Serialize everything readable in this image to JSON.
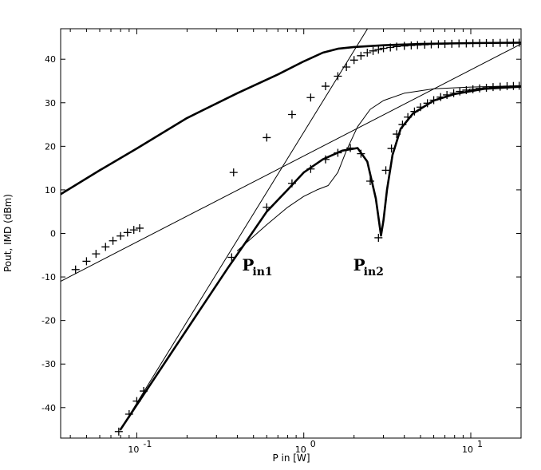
{
  "chart_data": {
    "type": "line",
    "title": "",
    "xlabel": "P in [W]",
    "ylabel": "Pout, IMD (dBm)",
    "xscale": "log",
    "xlim": [
      0.035,
      20
    ],
    "ylim": [
      -47,
      47
    ],
    "x_ticks": [
      {
        "value": 0.1,
        "base": "10",
        "exp": "-1"
      },
      {
        "value": 1,
        "base": "10",
        "exp": "0"
      },
      {
        "value": 10,
        "base": "10",
        "exp": "1"
      }
    ],
    "y_ticks": [
      -40,
      -30,
      -20,
      -10,
      0,
      10,
      20,
      30,
      40
    ],
    "grid": false,
    "series": [
      {
        "name": "upper fundamental",
        "style": "thick",
        "x": [
          0.035,
          0.06,
          0.1,
          0.2,
          0.4,
          0.7,
          1.0,
          1.3,
          1.6,
          2.0,
          3.0,
          5.0,
          10,
          20
        ],
        "y": [
          9,
          14.5,
          19.5,
          26.5,
          32.2,
          36.5,
          39.5,
          41.5,
          42.4,
          42.8,
          43.2,
          43.5,
          43.7,
          43.8
        ]
      },
      {
        "name": "upper fundamental measured",
        "style": "plus",
        "x": [
          0.38,
          0.6,
          0.85,
          1.1,
          1.35,
          1.6,
          1.8,
          2.0,
          2.2,
          2.4,
          2.6,
          2.8,
          3.0,
          3.3,
          3.6,
          4.0,
          4.4,
          4.8,
          5.3,
          5.8,
          6.4,
          7.0,
          7.7,
          8.5,
          9.4,
          10.3,
          11.3,
          12.4,
          13.6,
          15.0,
          16.5,
          18.0,
          19.5
        ],
        "y": [
          14,
          22,
          27.3,
          31.2,
          33.8,
          36.1,
          38.2,
          39.8,
          40.8,
          41.5,
          41.9,
          42.2,
          42.5,
          42.7,
          42.9,
          43.05,
          43.15,
          43.25,
          43.32,
          43.4,
          43.45,
          43.5,
          43.55,
          43.6,
          43.62,
          43.65,
          43.67,
          43.7,
          43.72,
          43.74,
          43.76,
          43.78,
          43.8
        ]
      },
      {
        "name": "fundamental asymptote",
        "style": "thin",
        "x": [
          0.08,
          2.5
        ],
        "y": [
          -45,
          48
        ]
      },
      {
        "name": "lower fundamental asymptote",
        "style": "thin",
        "x": [
          0.035,
          20
        ],
        "y": [
          -11,
          43.5
        ]
      },
      {
        "name": "lower fundamental measured",
        "style": "plus",
        "x": [
          0.043,
          0.05,
          0.057,
          0.065,
          0.072,
          0.08,
          0.088,
          0.096,
          0.104
        ],
        "y": [
          -8.3,
          -6.4,
          -4.7,
          -3.1,
          -1.7,
          -0.6,
          0.2,
          0.8,
          1.2
        ]
      },
      {
        "name": "IMD curve A",
        "style": "thick",
        "x": [
          0.08,
          0.2,
          0.35,
          0.45,
          0.6,
          0.8,
          1.0,
          1.3,
          1.7,
          2.1,
          2.4,
          2.7,
          2.9,
          3.0,
          3.15,
          3.4,
          3.8,
          4.5,
          6,
          8,
          12,
          20
        ],
        "y": [
          -45,
          -22,
          -8,
          -2,
          5,
          10,
          14,
          17,
          19,
          19.6,
          16.5,
          8,
          -0.5,
          3,
          10,
          18,
          24,
          27.5,
          30.5,
          32,
          33.2,
          33.7
        ]
      },
      {
        "name": "IMD curve B",
        "style": "thin",
        "x": [
          0.4,
          0.6,
          0.8,
          1.0,
          1.2,
          1.4,
          1.6,
          1.8,
          2.1,
          2.5,
          3.0,
          4.0,
          6,
          10,
          20
        ],
        "y": [
          -4,
          2,
          6,
          8.5,
          10,
          11,
          14,
          19,
          24.5,
          28.5,
          30.5,
          32.2,
          33.2,
          33.6,
          33.9
        ]
      },
      {
        "name": "IMD measured",
        "style": "plus",
        "x": [
          0.078,
          0.09,
          0.1,
          0.11,
          0.37,
          0.6,
          0.85,
          1.1,
          1.35,
          1.6,
          1.9,
          2.2,
          2.5,
          2.8,
          3.1,
          3.35,
          3.6,
          3.9,
          4.2,
          4.6,
          5.0,
          5.5,
          6.0,
          6.6,
          7.2,
          7.9,
          8.6,
          9.4,
          10.3,
          11.3,
          12.4,
          13.6,
          15,
          16.5,
          18,
          19.5
        ],
        "y": [
          -45.5,
          -41.5,
          -38.5,
          -36.2,
          -5.5,
          6,
          11.5,
          14.8,
          17,
          18.5,
          19.6,
          18.3,
          12,
          -1,
          14.5,
          19.5,
          22.8,
          25,
          26.7,
          28,
          29,
          29.9,
          30.6,
          31.3,
          31.8,
          32.2,
          32.6,
          32.9,
          33.1,
          33.3,
          33.45,
          33.6,
          33.7,
          33.8,
          33.85,
          33.9
        ]
      }
    ],
    "annotations": [
      {
        "id": "pin1",
        "text": "P",
        "sub": "in1",
        "x": 0.4,
        "y": -6
      },
      {
        "id": "pin2",
        "text": "P",
        "sub": "in2",
        "x": 1.85,
        "y": -6
      }
    ]
  }
}
